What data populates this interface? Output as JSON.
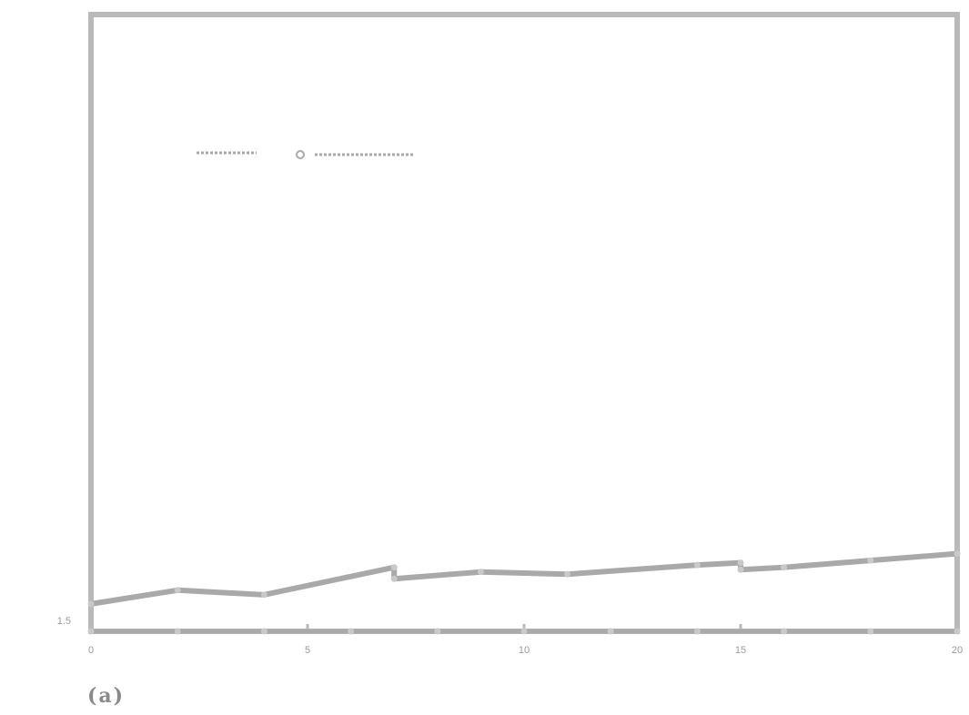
{
  "figure_label": "(a)",
  "colors": {
    "frame": "#b9b9b9",
    "series": "#a9a9a9",
    "text": "#9a9a9a"
  },
  "chart_data": {
    "type": "line",
    "title": "",
    "xlabel": "",
    "ylabel": "",
    "xlim": [
      0,
      20
    ],
    "ylim": [
      1.5,
      4.2
    ],
    "xticks": [
      {
        "value": 0,
        "label": "0"
      },
      {
        "value": 5,
        "label": "5"
      },
      {
        "value": 10,
        "label": "10"
      },
      {
        "value": 15,
        "label": "15"
      },
      {
        "value": 20,
        "label": "20"
      }
    ],
    "yticks": [
      {
        "value": 1.5,
        "label": "1.5"
      }
    ],
    "grid": false,
    "legend_position": "top-left",
    "series": [
      {
        "x": [
          0,
          2,
          4,
          7,
          7,
          9,
          11,
          14,
          15,
          15,
          16,
          18,
          20
        ],
        "y": [
          1.62,
          1.68,
          1.66,
          1.78,
          1.73,
          1.76,
          1.75,
          1.79,
          1.8,
          1.77,
          1.78,
          1.81,
          1.84
        ]
      },
      {
        "x": [
          0,
          2,
          4,
          6,
          8,
          10,
          12,
          14,
          16,
          18,
          20
        ],
        "y": [
          1.5,
          1.5,
          1.5,
          1.5,
          1.5,
          1.5,
          1.5,
          1.5,
          1.5,
          1.5,
          1.5
        ]
      }
    ]
  }
}
